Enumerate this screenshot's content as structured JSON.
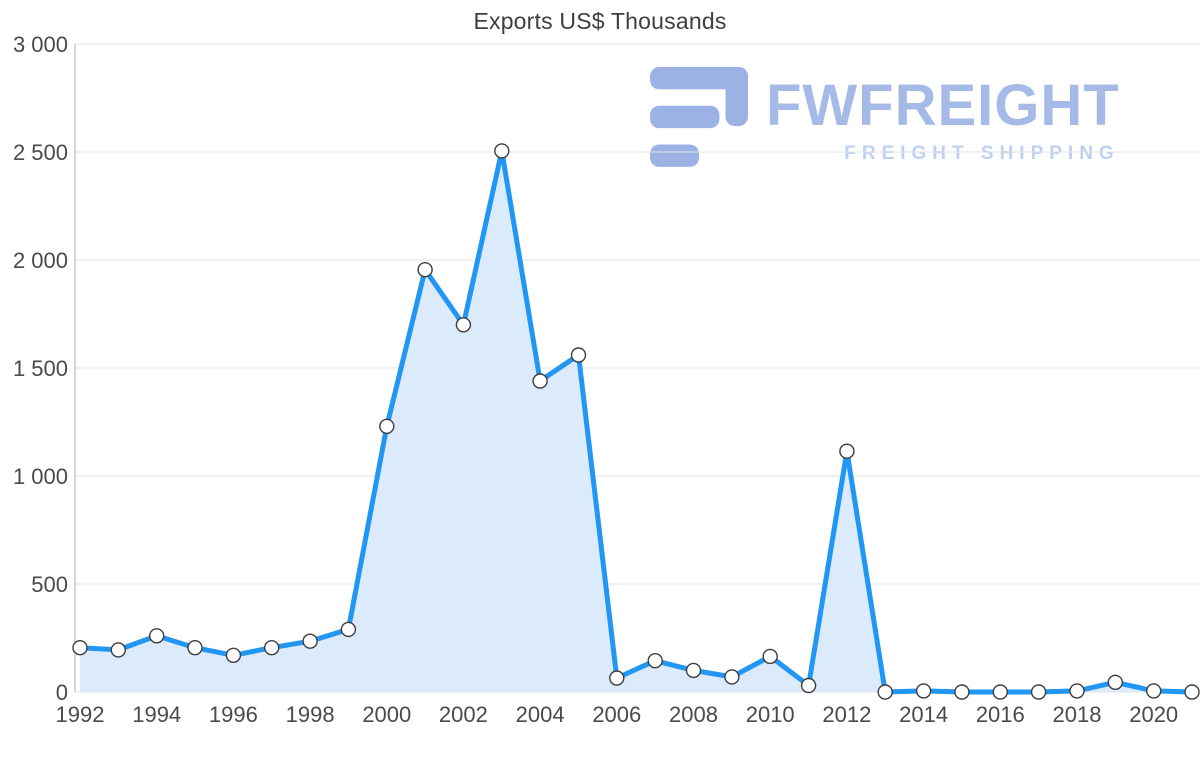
{
  "page": {
    "background": "#ffffff"
  },
  "chart_data": {
    "type": "area",
    "title": "Exports US$ Thousands",
    "xlabel": "",
    "ylabel": "",
    "x": [
      1992,
      1993,
      1994,
      1995,
      1996,
      1997,
      1998,
      1999,
      2000,
      2001,
      2002,
      2003,
      2004,
      2005,
      2006,
      2007,
      2008,
      2009,
      2010,
      2011,
      2012,
      2013,
      2014,
      2015,
      2016,
      2017,
      2018,
      2019,
      2020,
      2021
    ],
    "series": [
      {
        "name": "Exports US$ Thousands",
        "values": [
          205,
          195,
          260,
          205,
          170,
          205,
          235,
          290,
          1230,
          1955,
          1700,
          2505,
          1440,
          1560,
          65,
          145,
          100,
          70,
          165,
          30,
          1115,
          0,
          5,
          0,
          0,
          0,
          5,
          45,
          5,
          0
        ]
      }
    ],
    "ylim": [
      0,
      3000
    ],
    "yticks": [
      {
        "value": 0,
        "label": "0"
      },
      {
        "value": 500,
        "label": "500"
      },
      {
        "value": 1000,
        "label": "1 000"
      },
      {
        "value": 1500,
        "label": "1 500"
      },
      {
        "value": 2000,
        "label": "2 000"
      },
      {
        "value": 2500,
        "label": "2 500"
      },
      {
        "value": 3000,
        "label": "3 000"
      }
    ],
    "xticks": [
      {
        "value": 1992,
        "label": "1992"
      },
      {
        "value": 1994,
        "label": "1994"
      },
      {
        "value": 1996,
        "label": "1996"
      },
      {
        "value": 1998,
        "label": "1998"
      },
      {
        "value": 2000,
        "label": "2000"
      },
      {
        "value": 2002,
        "label": "2002"
      },
      {
        "value": 2004,
        "label": "2004"
      },
      {
        "value": 2006,
        "label": "2006"
      },
      {
        "value": 2008,
        "label": "2008"
      },
      {
        "value": 2010,
        "label": "2010"
      },
      {
        "value": 2012,
        "label": "2012"
      },
      {
        "value": 2014,
        "label": "2014"
      },
      {
        "value": 2016,
        "label": "2016"
      },
      {
        "value": 2018,
        "label": "2018"
      },
      {
        "value": 2020,
        "label": "2020"
      }
    ],
    "grid": "horizontal",
    "legend": "none",
    "colors": {
      "line": "#2196f3",
      "area": "#dcebfb",
      "marker_fill": "#ffffff",
      "marker_stroke": "#3d3d3d",
      "grid": "#e2e2e2",
      "axis": "#c8c8c8",
      "tick_label": "#4a4a4a",
      "title": "#3f3f3f"
    }
  },
  "watermark": {
    "name": "FWFREIGHT",
    "tagline": "FREIGHT SHIPPING",
    "colors": {
      "icon": "#9cb1e4",
      "name": "#a6bae8",
      "tagline": "#bcd0f2"
    }
  }
}
